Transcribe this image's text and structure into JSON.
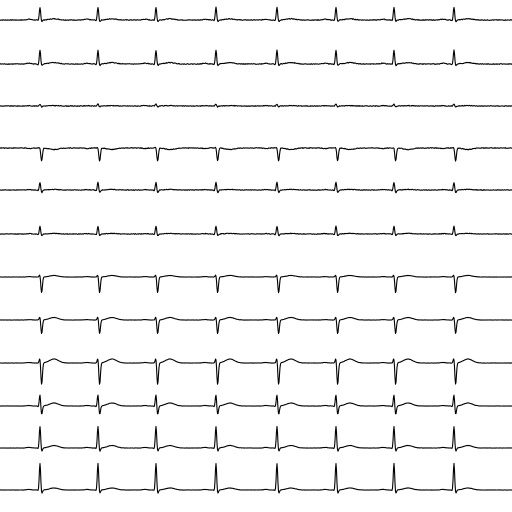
{
  "chart_data": {
    "type": "line",
    "title": "",
    "xlabel": "",
    "ylabel": "",
    "grid": false,
    "legend": "none",
    "trace_color": "#000000",
    "background_color": "#ffffff",
    "beat_positions": [
      40,
      98,
      156,
      216,
      277,
      336,
      394,
      454
    ],
    "leads": [
      {
        "index": 1,
        "r_height": 13,
        "s_depth": 2,
        "q_depth": 1,
        "t_amp": 1.2,
        "p_amp": 0.8,
        "noise": 0.7
      },
      {
        "index": 2,
        "r_height": 14,
        "s_depth": 2,
        "q_depth": 1,
        "t_amp": 1.4,
        "p_amp": 0.8,
        "noise": 0.7
      },
      {
        "index": 3,
        "r_height": 2,
        "s_depth": 1,
        "q_depth": 0,
        "t_amp": 0.4,
        "p_amp": 0.3,
        "noise": 0.7
      },
      {
        "index": 4,
        "r_height": 1,
        "s_depth": 13,
        "q_depth": 0,
        "t_amp": -1.5,
        "p_amp": -0.6,
        "noise": 0.7
      },
      {
        "index": 5,
        "r_height": 8,
        "s_depth": 3,
        "q_depth": 1,
        "t_amp": 0.6,
        "p_amp": 0.4,
        "noise": 0.6
      },
      {
        "index": 6,
        "r_height": 8,
        "s_depth": 2,
        "q_depth": 1,
        "t_amp": 0.6,
        "p_amp": 0.4,
        "noise": 0.6
      },
      {
        "index": 7,
        "r_height": 3,
        "s_depth": 16,
        "q_depth": 0,
        "t_amp": 1.5,
        "p_amp": 0.4,
        "noise": 0.25
      },
      {
        "index": 8,
        "r_height": 4,
        "s_depth": 14,
        "q_depth": 0,
        "t_amp": 2.5,
        "p_amp": 0.4,
        "noise": 0.25
      },
      {
        "index": 9,
        "r_height": 6,
        "s_depth": 22,
        "q_depth": 0,
        "t_amp": 4,
        "p_amp": 0.5,
        "noise": 0.25
      },
      {
        "index": 10,
        "r_height": 12,
        "s_depth": 9,
        "q_depth": 1,
        "t_amp": 3,
        "p_amp": 0.5,
        "noise": 0.25
      },
      {
        "index": 11,
        "r_height": 22,
        "s_depth": 4,
        "q_depth": 1,
        "t_amp": 2.5,
        "p_amp": 0.6,
        "noise": 0.25
      },
      {
        "index": 12,
        "r_height": 27,
        "s_depth": 4,
        "q_depth": 1,
        "t_amp": 2,
        "p_amp": 0.6,
        "noise": 0.25
      }
    ]
  }
}
